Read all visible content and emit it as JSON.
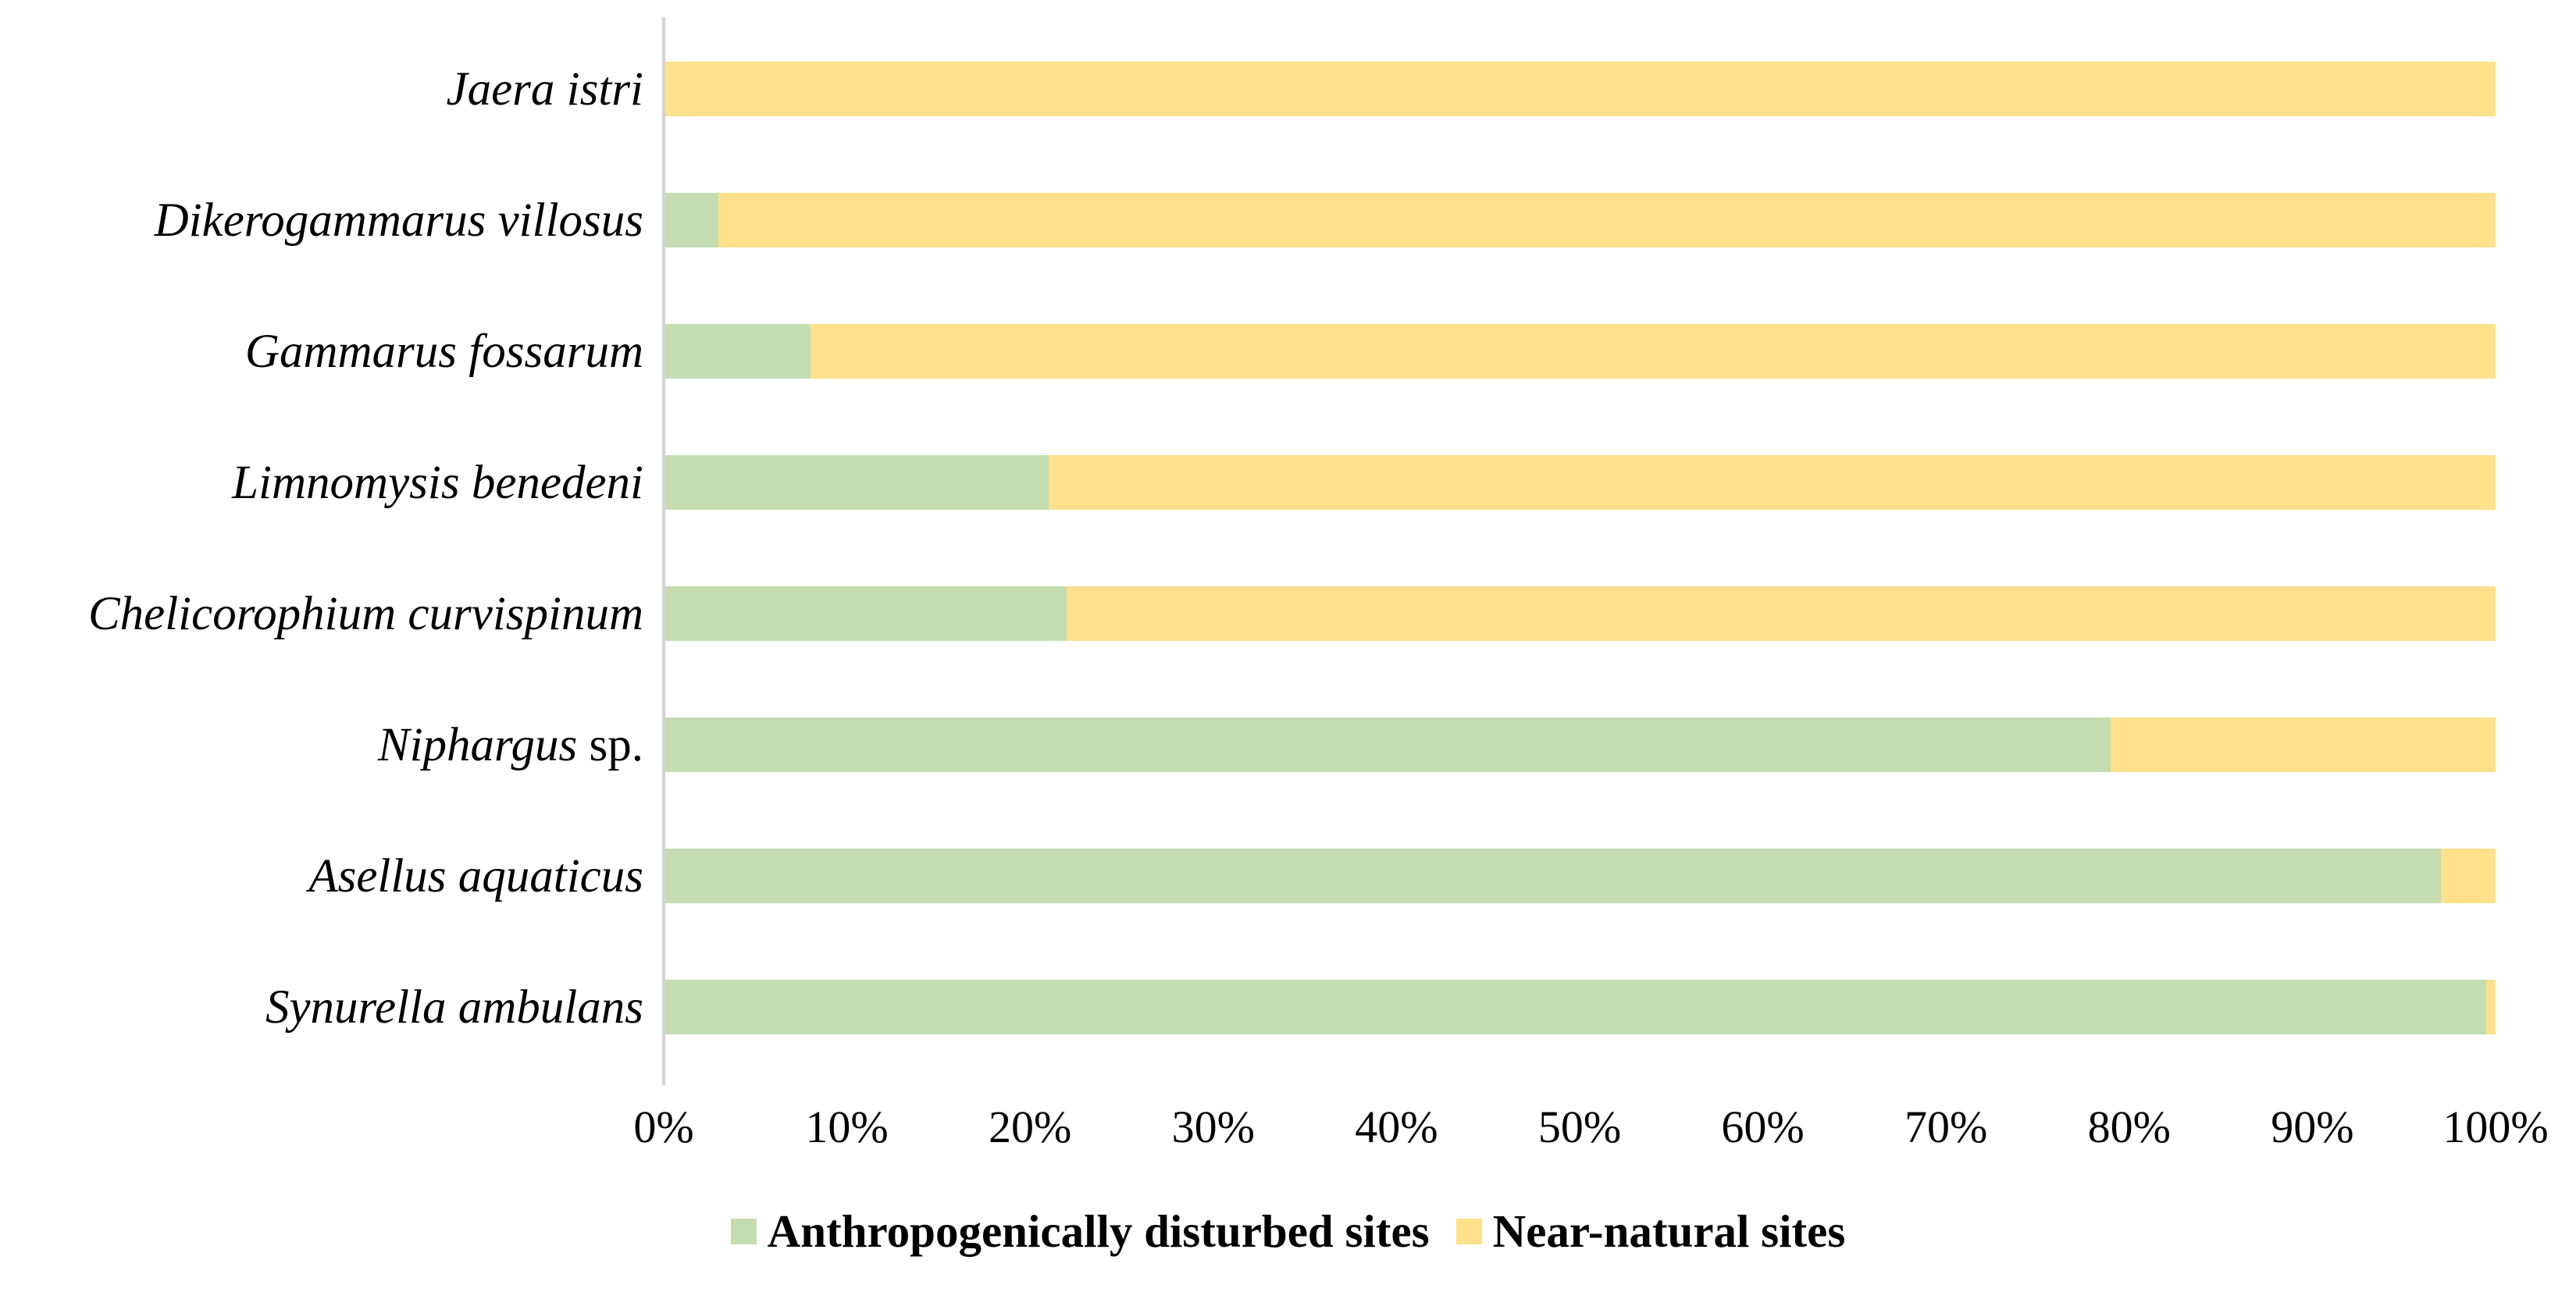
{
  "chart_data": {
    "type": "bar",
    "orientation": "horizontal",
    "stacked": true,
    "unit": "percent",
    "title": "",
    "xlabel": "",
    "ylabel": "",
    "xlim": [
      0,
      100
    ],
    "grid": false,
    "legend_position": "bottom",
    "categories": [
      "Jaera istri",
      "Dikerogammarus villosus",
      "Gammarus fossarum",
      "Limnomysis benedeni",
      "Chelicorophium curvispinum",
      "Niphargus sp.",
      "Asellus aquaticus",
      "Synurella ambulans"
    ],
    "categories_styled": [
      {
        "italic": "Jaera istri",
        "roman": ""
      },
      {
        "italic": "Dikerogammarus villosus",
        "roman": ""
      },
      {
        "italic": "Gammarus fossarum",
        "roman": ""
      },
      {
        "italic": "Limnomysis benedeni",
        "roman": ""
      },
      {
        "italic": "Chelicorophium curvispinum",
        "roman": ""
      },
      {
        "italic": "Niphargus",
        "roman": " sp."
      },
      {
        "italic": "Asellus aquaticus",
        "roman": ""
      },
      {
        "italic": "Synurella ambulans",
        "roman": ""
      }
    ],
    "series": [
      {
        "name": "Anthropogenically disturbed sites",
        "color": "#c3ddb0",
        "values": [
          0,
          3,
          8,
          21,
          22,
          79,
          97,
          99.5
        ]
      },
      {
        "name": "Near-natural sites",
        "color": "#ffe18c",
        "values": [
          100,
          97,
          92,
          79,
          78,
          21,
          3,
          0.5
        ]
      }
    ],
    "x_ticks": [
      "0%",
      "10%",
      "20%",
      "30%",
      "40%",
      "50%",
      "60%",
      "70%",
      "80%",
      "90%",
      "100%"
    ]
  },
  "legend": {
    "items": [
      {
        "label": "Anthropogenically disturbed sites",
        "color": "#c3ddb0"
      },
      {
        "label": "Near-natural sites",
        "color": "#ffe18c"
      }
    ]
  },
  "colors": {
    "disturbed_green": "#c3ddb0",
    "near_natural_yellow": "#ffe18c",
    "axis_line": "#d2d2d2",
    "text": "#000000",
    "background": "#ffffff"
  }
}
